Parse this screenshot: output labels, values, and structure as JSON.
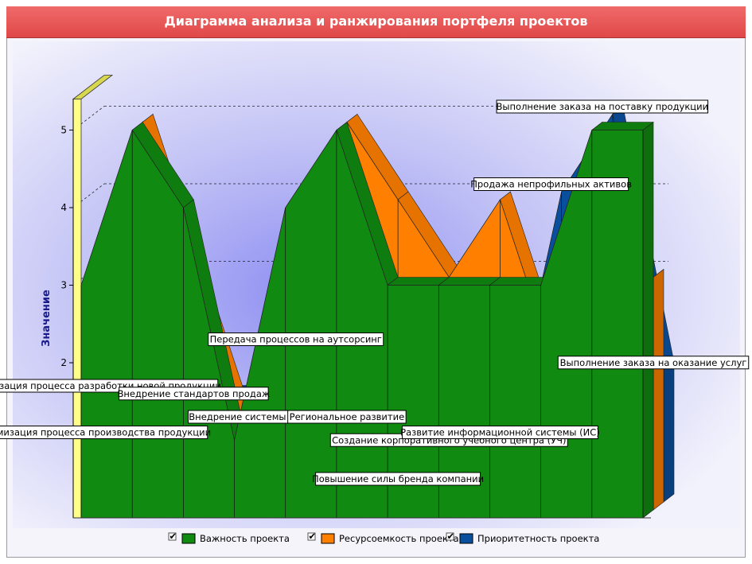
{
  "page": {
    "title": "Диаграмма анализа и ранжирования портфеля проектов"
  },
  "colors": {
    "green": "#118a11",
    "orange": "#ff8000",
    "blue": "#0a4f9e",
    "wall": "#ffff88",
    "wall_dark": "#d8d850",
    "title_bg": "#e85858"
  },
  "chart_data": {
    "type": "area",
    "title": "Диаграмма анализа и ранжирования портфеля проектов",
    "xlabel": "",
    "ylabel": "Значение",
    "ylim": [
      0,
      5.4
    ],
    "yticks": [
      2,
      3,
      4,
      5
    ],
    "grid": true,
    "legend_position": "bottom",
    "categories": [
      "Оптимизация процесса производства продукции",
      "Оптимизация процесса разработки новой продукции",
      "Внедрение стандартов продаж",
      "Внедрение системы 5S",
      "Передача процессов на аутсорсинг",
      "Региональное развитие",
      "Повышение силы бренда компании",
      "Создание корпоративного учебного центра (УЧ)",
      "Развитие информационной системы (ИС)",
      "Продажа непрофильных активов",
      "Выполнение заказа на поставку продукции",
      "Выполнение заказа на оказание услуг"
    ],
    "series": [
      {
        "name": "Важность проекта",
        "checked": true,
        "values": [
          3,
          5,
          4,
          1,
          4,
          5,
          3,
          3,
          3,
          3,
          5,
          5
        ]
      },
      {
        "name": "Ресурсоемкость проекта",
        "checked": true,
        "values": [
          2,
          5,
          3,
          1,
          2,
          5,
          4,
          3,
          4,
          2,
          2,
          3
        ]
      },
      {
        "name": "Приоритетность проекта",
        "checked": true,
        "values": [
          1.5,
          0.8,
          1.4,
          1.4,
          2.1,
          1.2,
          0.2,
          0.8,
          1.0,
          4.0,
          5.0,
          1.7
        ]
      }
    ],
    "annotations": [
      {
        "text": "Оптимизация процесса производства продукции",
        "cat": 0,
        "value": 1.0
      },
      {
        "text": "Оптимизация процесса разработки новой продукции",
        "cat": 0,
        "value": 1.6
      },
      {
        "text": "Внедрение стандартов продаж",
        "cat": 2,
        "value": 1.5
      },
      {
        "text": "Внедрение системы 5S",
        "cat": 3,
        "value": 1.2
      },
      {
        "text": "Передача процессов на аутсорсинг",
        "cat": 4,
        "value": 2.2
      },
      {
        "text": "Региональное развитие",
        "cat": 5,
        "value": 1.2
      },
      {
        "text": "Повышение силы бренда компании",
        "cat": 6,
        "value": 0.4
      },
      {
        "text": "Создание корпоративного учебного центра (УЧ)",
        "cat": 7,
        "value": 0.9
      },
      {
        "text": "Развитие информационной системы (ИС)",
        "cat": 8,
        "value": 1.0
      },
      {
        "text": "Продажа непрофильных активов",
        "cat": 9,
        "value": 4.2
      },
      {
        "text": "Выполнение заказа на поставку продукции",
        "cat": 10,
        "value": 5.2
      },
      {
        "text": "Выполнение заказа на оказание услуг",
        "cat": 11,
        "value": 1.9
      }
    ]
  }
}
